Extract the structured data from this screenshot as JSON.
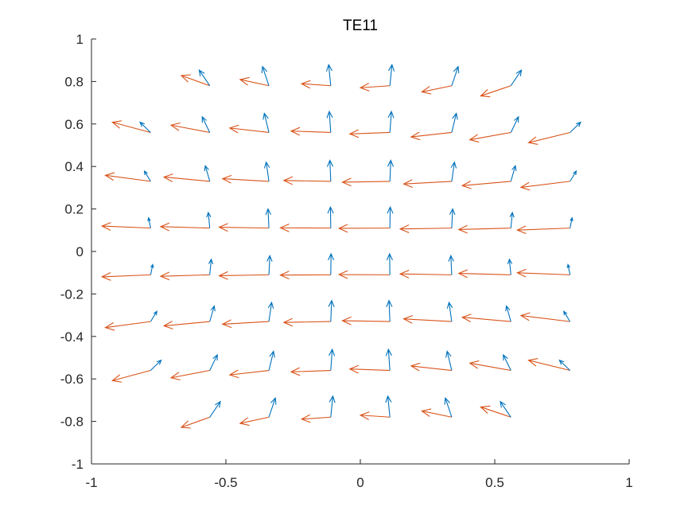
{
  "chart_data": {
    "type": "quiver",
    "title": "TE11",
    "xlabel": "",
    "ylabel": "",
    "xlim": [
      -1,
      1
    ],
    "ylim": [
      -1,
      1
    ],
    "xticks": [
      -1,
      -0.5,
      0,
      0.5,
      1
    ],
    "yticks": [
      -1,
      -0.8,
      -0.6,
      -0.4,
      -0.2,
      0,
      0.2,
      0.4,
      0.6,
      0.8,
      1
    ],
    "xtick_labels": [
      "-1",
      "-0.5",
      "0",
      "0.5",
      "1"
    ],
    "ytick_labels": [
      "-1",
      "-0.8",
      "-0.6",
      "-0.4",
      "-0.2",
      "0",
      "0.2",
      "0.4",
      "0.6",
      "0.8",
      "1"
    ],
    "grid": false,
    "legend": "none",
    "series": [
      {
        "color": "#0072BD"
      },
      {
        "color": "#D95319"
      }
    ],
    "field": {
      "grid_x": [
        -0.78,
        -0.56,
        -0.34,
        -0.11,
        0.11,
        0.34,
        0.56,
        0.78
      ],
      "grid_y": [
        0.78,
        0.56,
        0.33,
        0.11,
        -0.11,
        -0.33,
        -0.56,
        -0.78
      ],
      "circle_radius": 1.0,
      "series1_scale": 0.1,
      "series2_scale": 0.2
    }
  }
}
